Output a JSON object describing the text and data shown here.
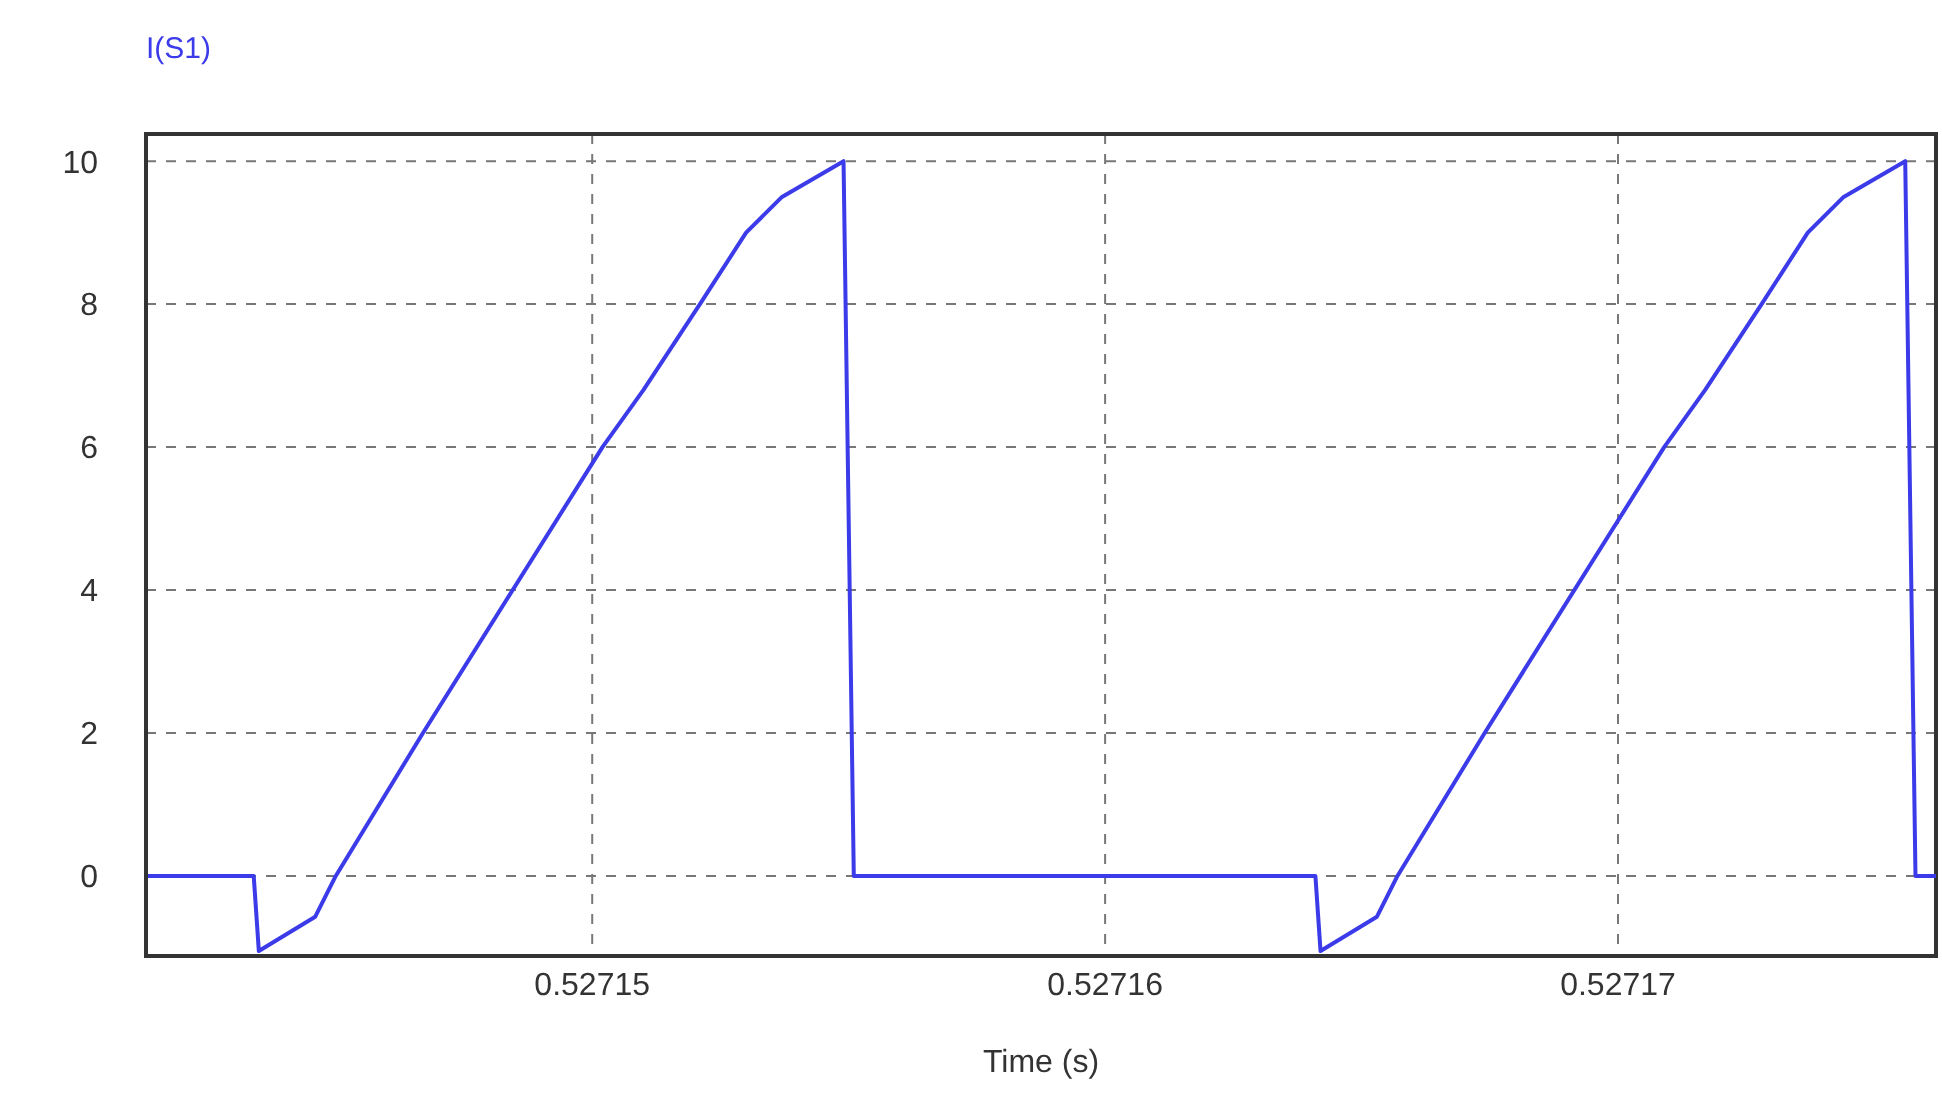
{
  "chart_data": {
    "type": "line",
    "xlabel": "Time (s)",
    "xlim": [
      0.5271413,
      0.5271762
    ],
    "xticks": [
      0.52715,
      0.52716,
      0.52717
    ],
    "ylim": [
      -1.12,
      10.38
    ],
    "yticks": [
      0,
      2,
      4,
      6,
      8,
      10
    ],
    "grid": true,
    "legend": "top left",
    "marker": "none",
    "series": [
      {
        "name": "I(S1)",
        "color": "#3b3bea",
        "x": [
          0.5271413,
          0.5271434,
          0.5271435,
          0.5271446,
          0.527145,
          0.5271467,
          0.5271502,
          0.527151,
          0.5271521,
          0.527153,
          0.5271537,
          0.5271549,
          0.527155,
          0.5271551,
          0.5271641,
          0.5271642,
          0.5271653,
          0.5271657,
          0.5271674,
          0.5271709,
          0.5271717,
          0.5271728,
          0.5271737,
          0.5271744,
          0.5271756,
          0.5271757,
          0.5271758,
          0.5271762
        ],
        "values": [
          0,
          0,
          -1.05,
          -0.57,
          0,
          2,
          6,
          6.8,
          8,
          9,
          9.5,
          10,
          5,
          0,
          0,
          -1.05,
          -0.57,
          0,
          2,
          6,
          6.8,
          8,
          9,
          9.5,
          10,
          5,
          0,
          0
        ],
        "line_style": "solid"
      }
    ]
  }
}
